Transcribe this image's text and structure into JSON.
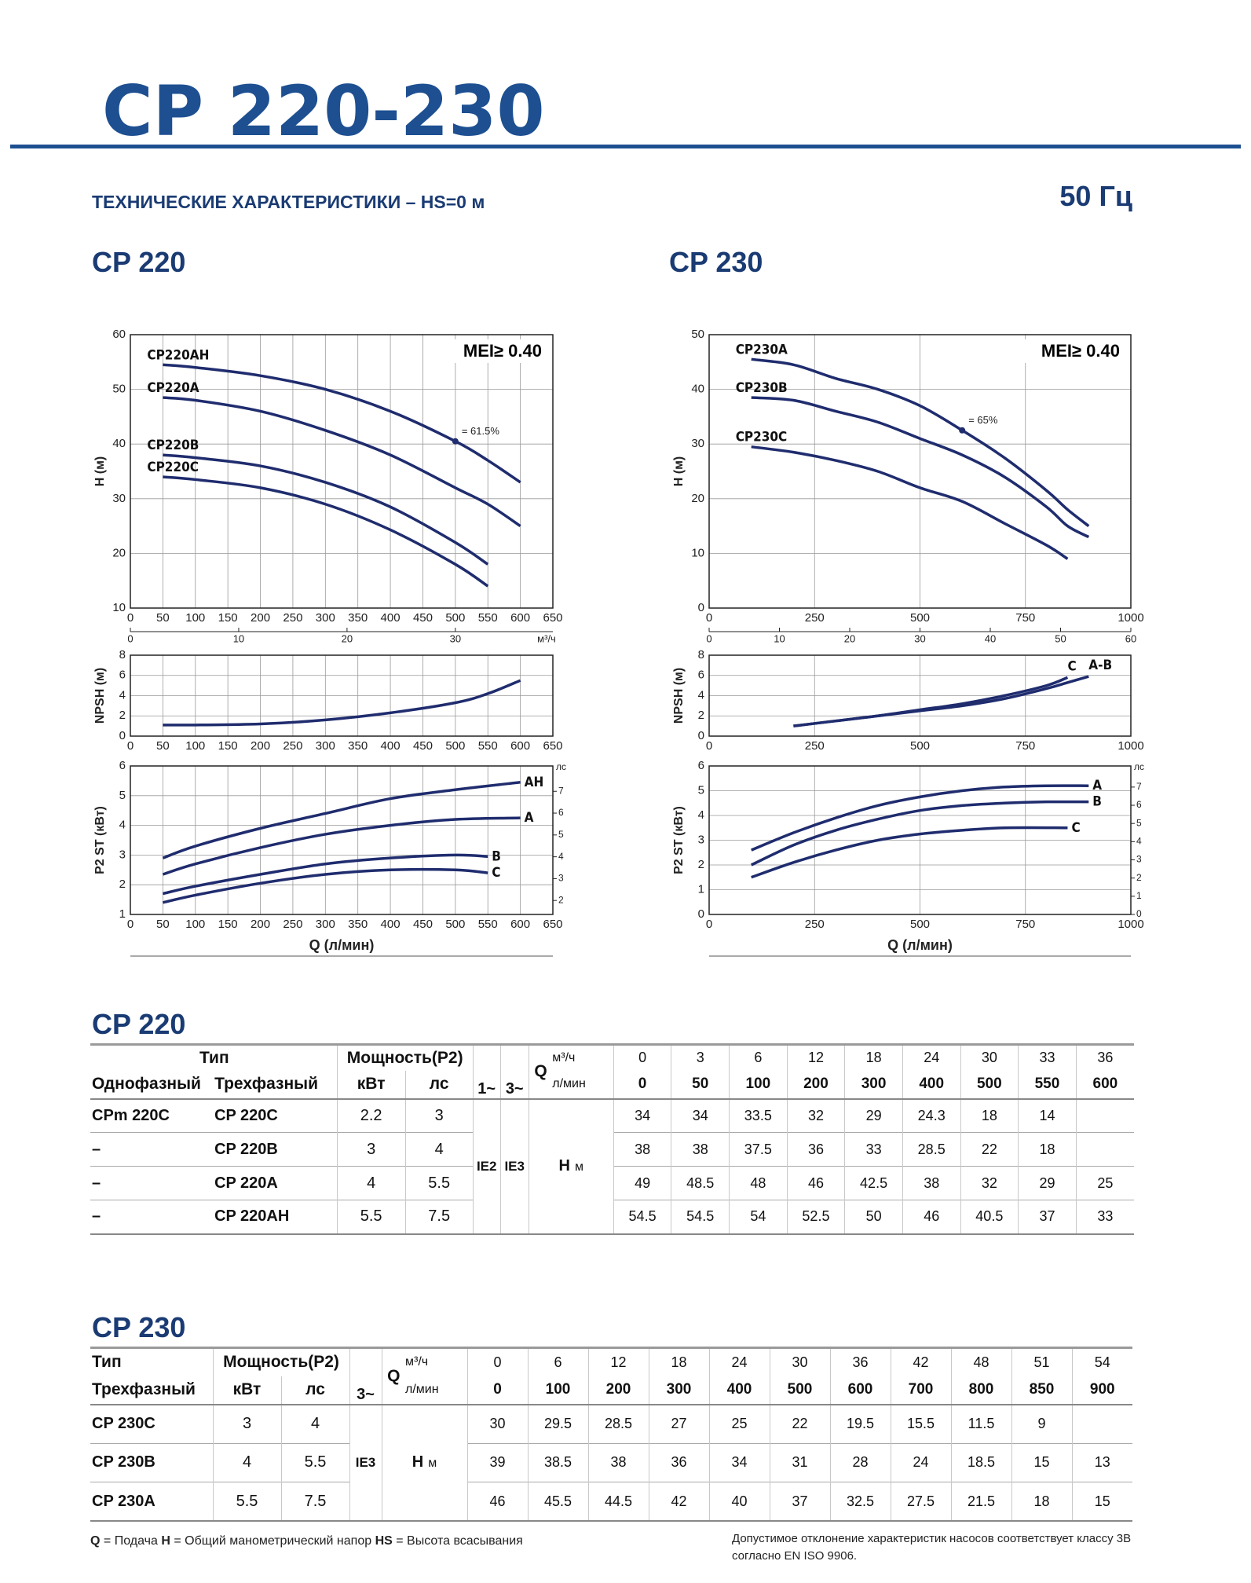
{
  "header": {
    "title": "CP 220-230",
    "subtitle": "ТЕХНИЧЕСКИЕ ХАРАКТЕРИСТИКИ – HS=0 м",
    "frequency": "50 Гц"
  },
  "chart_data": [
    {
      "type": "line",
      "title": "CP 220",
      "ylabel": "H (м)",
      "xlim": [
        0,
        650
      ],
      "xticks": [
        0,
        50,
        100,
        150,
        200,
        250,
        300,
        350,
        400,
        450,
        500,
        550,
        600,
        650
      ],
      "ylim": [
        10,
        60
      ],
      "yticks": [
        10,
        20,
        30,
        40,
        50,
        60
      ],
      "x2lim": [
        0,
        39
      ],
      "x2ticks": [
        0,
        10,
        20,
        30
      ],
      "x2label": "м³/ч",
      "grid": true,
      "annotation": "MEI≥ 0.40",
      "point": {
        "label": "= 61.5%",
        "x": 500,
        "y": 40.5
      },
      "series": [
        {
          "name": "CP220AH",
          "color": "#1f2c6e",
          "x": [
            50,
            100,
            200,
            300,
            400,
            500,
            550,
            600
          ],
          "values": [
            54.5,
            54,
            52.5,
            50,
            46,
            40.5,
            37,
            33
          ]
        },
        {
          "name": "CP220A",
          "color": "#1f2c6e",
          "x": [
            50,
            100,
            200,
            300,
            400,
            500,
            550,
            600
          ],
          "values": [
            48.5,
            48,
            46,
            42.5,
            38,
            32,
            29,
            25
          ]
        },
        {
          "name": "CP220B",
          "color": "#1f2c6e",
          "x": [
            50,
            100,
            200,
            300,
            400,
            500,
            550
          ],
          "values": [
            38,
            37.5,
            36,
            33,
            28.5,
            22,
            18
          ]
        },
        {
          "name": "CP220C",
          "color": "#1f2c6e",
          "x": [
            50,
            100,
            200,
            300,
            400,
            500,
            550
          ],
          "values": [
            34,
            33.5,
            32,
            29,
            24.3,
            18,
            14
          ]
        }
      ]
    },
    {
      "type": "line",
      "ylabel": "NPSH (м)",
      "xlim": [
        0,
        650
      ],
      "xticks": [
        0,
        50,
        100,
        150,
        200,
        250,
        300,
        350,
        400,
        450,
        500,
        550,
        600,
        650
      ],
      "ylim": [
        0,
        8
      ],
      "yticks": [
        0,
        2,
        4,
        6,
        8
      ],
      "grid": true,
      "series": [
        {
          "color": "#1f2c6e",
          "x": [
            50,
            100,
            200,
            300,
            400,
            500,
            550,
            600
          ],
          "values": [
            1.1,
            1.1,
            1.2,
            1.6,
            2.3,
            3.3,
            4.2,
            5.5
          ]
        }
      ]
    },
    {
      "type": "line",
      "ylabel": "P2 ST (кВт)",
      "xlabel": "Q (л/мин)",
      "xlim": [
        0,
        650
      ],
      "xticks": [
        0,
        50,
        100,
        150,
        200,
        250,
        300,
        350,
        400,
        450,
        500,
        550,
        600,
        650
      ],
      "ylim": [
        1,
        6
      ],
      "yticks": [
        1,
        2,
        3,
        4,
        5,
        6
      ],
      "y2lim": [
        1.36,
        8.16
      ],
      "y2ticks": [
        2,
        3,
        4,
        5,
        6,
        7
      ],
      "y2label": "лс",
      "grid": true,
      "series": [
        {
          "name": "AH",
          "color": "#1f2c6e",
          "x": [
            50,
            100,
            200,
            300,
            400,
            500,
            600
          ],
          "values": [
            2.9,
            3.3,
            3.9,
            4.4,
            4.9,
            5.2,
            5.45
          ]
        },
        {
          "name": "A",
          "color": "#1f2c6e",
          "x": [
            50,
            100,
            200,
            300,
            400,
            500,
            600
          ],
          "values": [
            2.35,
            2.7,
            3.25,
            3.7,
            4,
            4.2,
            4.25
          ]
        },
        {
          "name": "B",
          "color": "#1f2c6e",
          "x": [
            50,
            100,
            200,
            300,
            400,
            500,
            550
          ],
          "values": [
            1.7,
            1.95,
            2.35,
            2.7,
            2.9,
            3,
            2.95
          ]
        },
        {
          "name": "C",
          "color": "#1f2c6e",
          "x": [
            50,
            100,
            200,
            300,
            400,
            500,
            550
          ],
          "values": [
            1.4,
            1.65,
            2.05,
            2.35,
            2.5,
            2.5,
            2.4
          ]
        }
      ]
    },
    {
      "type": "line",
      "title": "CP 230",
      "ylabel": "H (м)",
      "xlim": [
        0,
        1000
      ],
      "xticks": [
        0,
        250,
        500,
        750,
        1000
      ],
      "ylim": [
        0,
        50
      ],
      "yticks": [
        0,
        10,
        20,
        30,
        40,
        50
      ],
      "x2lim": [
        0,
        60
      ],
      "x2ticks": [
        0,
        10,
        20,
        30,
        40,
        50,
        60
      ],
      "grid": true,
      "annotation": "MEI≥ 0.40",
      "point": {
        "label": "= 65%",
        "x": 600,
        "y": 32.5
      },
      "series": [
        {
          "name": "CP230A",
          "color": "#1f2c6e",
          "x": [
            100,
            200,
            300,
            400,
            500,
            600,
            700,
            800,
            850,
            900
          ],
          "values": [
            45.5,
            44.5,
            42,
            40,
            37,
            32.5,
            27.5,
            21.5,
            18,
            15
          ]
        },
        {
          "name": "CP230B",
          "color": "#1f2c6e",
          "x": [
            100,
            200,
            300,
            400,
            500,
            600,
            700,
            800,
            850,
            900
          ],
          "values": [
            38.5,
            38,
            36,
            34,
            31,
            28,
            24,
            18.5,
            15,
            13
          ]
        },
        {
          "name": "CP230C",
          "color": "#1f2c6e",
          "x": [
            100,
            200,
            300,
            400,
            500,
            600,
            700,
            800,
            850
          ],
          "values": [
            29.5,
            28.5,
            27,
            25,
            22,
            19.5,
            15.5,
            11.5,
            9
          ]
        }
      ]
    },
    {
      "type": "line",
      "ylabel": "NPSH (м)",
      "xlim": [
        0,
        1000
      ],
      "xticks": [
        0,
        250,
        500,
        750,
        1000
      ],
      "ylim": [
        0,
        8
      ],
      "yticks": [
        0,
        2,
        4,
        6,
        8
      ],
      "grid": true,
      "series": [
        {
          "name": "C",
          "color": "#1f2c6e",
          "x": [
            200,
            300,
            400,
            500,
            600,
            700,
            800,
            850
          ],
          "values": [
            1,
            1.5,
            2,
            2.6,
            3.2,
            4,
            5,
            5.8
          ]
        },
        {
          "name": "A-B",
          "color": "#1f2c6e",
          "x": [
            200,
            300,
            400,
            500,
            600,
            700,
            800,
            850,
            900
          ],
          "values": [
            1,
            1.5,
            2,
            2.5,
            3,
            3.7,
            4.7,
            5.3,
            5.9
          ]
        }
      ]
    },
    {
      "type": "line",
      "ylabel": "P2 ST (кВт)",
      "xlabel": "Q (л/мин)",
      "xlim": [
        0,
        1000
      ],
      "xticks": [
        0,
        250,
        500,
        750,
        1000
      ],
      "ylim": [
        0,
        6
      ],
      "yticks": [
        0,
        1,
        2,
        3,
        4,
        5,
        6
      ],
      "y2lim": [
        0,
        8.16
      ],
      "y2ticks": [
        0,
        1,
        2,
        3,
        4,
        5,
        6,
        7
      ],
      "y2label": "лс",
      "grid": true,
      "series": [
        {
          "name": "A",
          "color": "#1f2c6e",
          "x": [
            100,
            200,
            300,
            400,
            500,
            600,
            700,
            800,
            900
          ],
          "values": [
            2.6,
            3.3,
            3.9,
            4.4,
            4.75,
            5,
            5.15,
            5.2,
            5.2
          ]
        },
        {
          "name": "B",
          "color": "#1f2c6e",
          "x": [
            100,
            200,
            300,
            400,
            500,
            600,
            700,
            800,
            900
          ],
          "values": [
            2,
            2.8,
            3.4,
            3.85,
            4.2,
            4.4,
            4.5,
            4.55,
            4.55
          ]
        },
        {
          "name": "C",
          "color": "#1f2c6e",
          "x": [
            100,
            200,
            300,
            400,
            500,
            600,
            700,
            850
          ],
          "values": [
            1.5,
            2.1,
            2.6,
            3,
            3.25,
            3.4,
            3.5,
            3.5
          ]
        }
      ]
    }
  ],
  "tables": [
    {
      "title": "CP 220",
      "type_header": "Тип",
      "col_single": "Однофазный",
      "col_three": "Трехфазный",
      "power": "Мощность(P2)",
      "kw": "кВт",
      "hp": "лс",
      "phase1": "1~",
      "phase3": "3~",
      "q": "Q",
      "unit_m3h": "м³/ч",
      "unit_lmin": "л/мин",
      "ie1": "IE2",
      "ie": "IE3",
      "h": "H",
      "h_unit": "м",
      "q_m3h": [
        0,
        3,
        6,
        12,
        18,
        24,
        30,
        33,
        36
      ],
      "q_lmin": [
        0,
        50,
        100,
        200,
        300,
        400,
        500,
        550,
        600
      ],
      "rows": [
        {
          "single": "CPm 220C",
          "three": "CP 220C",
          "kw": 2.2,
          "hp": 3,
          "h": [
            34,
            34,
            33.5,
            32,
            29,
            24.3,
            18,
            14,
            null
          ]
        },
        {
          "single": "–",
          "three": "CP 220B",
          "kw": 3,
          "hp": 4,
          "h": [
            38,
            38,
            37.5,
            36,
            33,
            28.5,
            22,
            18,
            null
          ]
        },
        {
          "single": "–",
          "three": "CP 220A",
          "kw": 4,
          "hp": 5.5,
          "h": [
            49,
            48.5,
            48,
            46,
            42.5,
            38,
            32,
            29,
            25
          ]
        },
        {
          "single": "–",
          "three": "CP 220AH",
          "kw": 5.5,
          "hp": 7.5,
          "h": [
            54.5,
            54.5,
            54,
            52.5,
            50,
            46,
            40.5,
            37,
            33
          ]
        }
      ]
    },
    {
      "title": "CP 230",
      "type_header": "Тип",
      "col_three": "Трехфазный",
      "power": "Мощность(P2)",
      "kw": "кВт",
      "hp": "лс",
      "phase3": "3~",
      "q": "Q",
      "unit_m3h": "м³/ч",
      "unit_lmin": "л/мин",
      "ie": "IE3",
      "h": "H",
      "h_unit": "м",
      "q_m3h": [
        0,
        6,
        12,
        18,
        24,
        30,
        36,
        42,
        48,
        51,
        54
      ],
      "q_lmin": [
        0,
        100,
        200,
        300,
        400,
        500,
        600,
        700,
        800,
        850,
        900
      ],
      "rows": [
        {
          "three": "CP 230C",
          "kw": 3,
          "hp": 4,
          "h": [
            30,
            29.5,
            28.5,
            27,
            25,
            22,
            19.5,
            15.5,
            11.5,
            9,
            null
          ]
        },
        {
          "three": "CP 230B",
          "kw": 4,
          "hp": 5.5,
          "h": [
            39,
            38.5,
            38,
            36,
            34,
            31,
            28,
            24,
            18.5,
            15,
            13
          ]
        },
        {
          "three": "CP 230A",
          "kw": 5.5,
          "hp": 7.5,
          "h": [
            46,
            45.5,
            44.5,
            42,
            40,
            37,
            32.5,
            27.5,
            21.5,
            18,
            15
          ]
        }
      ]
    }
  ],
  "footer": {
    "legend": [
      {
        "key": "Q",
        "text": "= Подача"
      },
      {
        "key": "H",
        "text": "= Общий манометрический напор"
      },
      {
        "key": "HS",
        "text": "= Высота всасывания"
      }
    ],
    "note": "Допустимое отклонение характеристик насосов соответствует классу 3B согласно EN ISO 9906."
  }
}
